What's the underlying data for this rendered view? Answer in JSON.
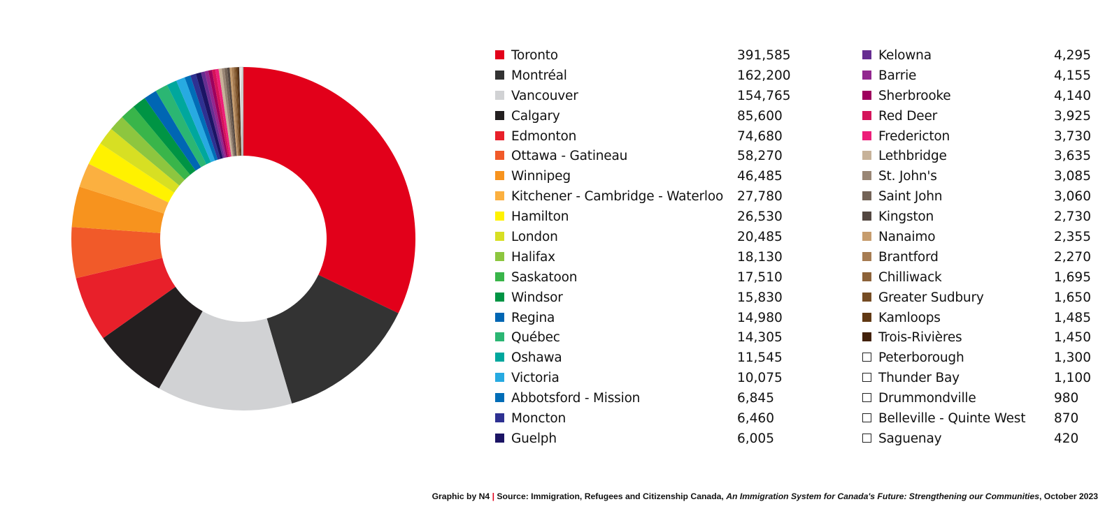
{
  "chart_data": {
    "type": "pie",
    "variant": "donut",
    "start": "top, clockwise",
    "categories": [
      "Toronto",
      "Montréal",
      "Vancouver",
      "Calgary",
      "Edmonton",
      "Ottawa - Gatineau",
      "Winnipeg",
      "Kitchener - Cambridge - Waterloo",
      "Hamilton",
      "London",
      "Halifax",
      "Saskatoon",
      "Windsor",
      "Regina",
      "Québec",
      "Oshawa",
      "Victoria",
      "Abbotsford - Mission",
      "Moncton",
      "Guelph",
      "Kelowna",
      "Barrie",
      "Sherbrooke",
      "Red Deer",
      "Fredericton",
      "Lethbridge",
      "St. John's",
      "Saint John",
      "Kingston",
      "Nanaimo",
      "Brantford",
      "Chilliwack",
      "Greater Sudbury",
      "Kamloops",
      "Trois-Rivières",
      "Peterborough",
      "Thunder Bay",
      "Drummondville",
      "Belleville - Quinte West",
      "Saguenay"
    ],
    "values": [
      391585,
      162200,
      154765,
      85600,
      74680,
      58270,
      46485,
      27780,
      26530,
      20485,
      18130,
      17510,
      15830,
      14980,
      14305,
      11545,
      10075,
      6845,
      6460,
      6005,
      4295,
      4155,
      4140,
      3925,
      3730,
      3635,
      3085,
      3060,
      2730,
      2355,
      2270,
      1695,
      1650,
      1485,
      1450,
      1300,
      1100,
      980,
      870,
      420
    ],
    "value_labels": [
      "391,585",
      "162,200",
      "154,765",
      "85,600",
      "74,680",
      "58,270",
      "46,485",
      "27,780",
      "26,530",
      "20,485",
      "18,130",
      "17,510",
      "15,830",
      "14,980",
      "14,305",
      "11,545",
      "10,075",
      "6,845",
      "6,460",
      "6,005",
      "4,295",
      "4,155",
      "4,140",
      "3,925",
      "3,730",
      "3,635",
      "3,085",
      "3,060",
      "2,730",
      "2,355",
      "2,270",
      "1,695",
      "1,650",
      "1,485",
      "1,450",
      "1,300",
      "1,100",
      "980",
      "870",
      "420"
    ],
    "colors": [
      "#e2001a",
      "#333333",
      "#d1d2d4",
      "#231f20",
      "#e8202a",
      "#f15a29",
      "#f7931e",
      "#fbb040",
      "#fff200",
      "#d7df23",
      "#8dc63f",
      "#39b54a",
      "#009444",
      "#0066b3",
      "#2bb673",
      "#00a79d",
      "#27aae1",
      "#006db7",
      "#2e3192",
      "#1b1464",
      "#662d91",
      "#92278f",
      "#9e005d",
      "#d4145a",
      "#ed1e79",
      "#c7b299",
      "#998675",
      "#736357",
      "#534741",
      "#c69c6d",
      "#a67c52",
      "#8c6239",
      "#754c24",
      "#603813",
      "#42210b",
      "#ffffff",
      "#ffffff",
      "#ffffff",
      "#ffffff",
      "#ffffff"
    ],
    "legend_columns": [
      20,
      20
    ],
    "legend_placement": "right of chart, two columns"
  },
  "footer": {
    "credit": "Graphic by N4",
    "separator": "|",
    "source_prefix": "Source: Immigration, Refugees and Citizenship Canada,",
    "source_title": "An Immigration System for Canada's Future: Strengthening our Communities",
    "source_suffix": ", October 2023"
  }
}
